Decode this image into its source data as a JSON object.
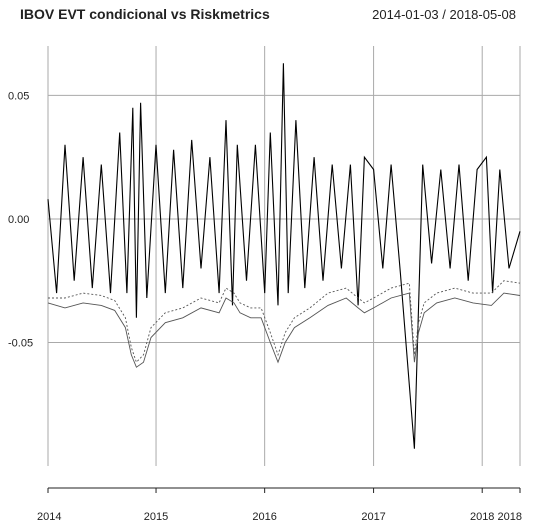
{
  "chart_data": {
    "type": "line",
    "title": "IBOV EVT condicional vs Riskmetrics",
    "date_range": "2014-01-03 / 2018-05-08",
    "xlim": [
      "2014-01-03",
      "2018-05-08"
    ],
    "ylim": [
      -0.1,
      0.07
    ],
    "x_ticks": [
      {
        "label": "2014",
        "date": "2014-01-03"
      },
      {
        "label": "2015",
        "date": "2015-01-01"
      },
      {
        "label": "2016",
        "date": "2016-01-01"
      },
      {
        "label": "2017",
        "date": "2017-01-01"
      },
      {
        "label": "2018",
        "date": "2018-01-01"
      },
      {
        "label": "2018",
        "date": "2018-05-08"
      }
    ],
    "y_ticks": [
      {
        "label": "0.05",
        "value": 0.05
      },
      {
        "label": "0.00",
        "value": 0.0
      },
      {
        "label": "-0.05",
        "value": -0.05
      }
    ],
    "grid": true,
    "colors": {
      "returns": "#000000",
      "evt": "#555555",
      "riskmetrics": "#555555",
      "grid": "#aaaaaa"
    },
    "series": [
      {
        "key": "returns",
        "style": "solid",
        "x": [
          "2014-01-03",
          "2014-02-01",
          "2014-03-01",
          "2014-04-01",
          "2014-05-01",
          "2014-06-01",
          "2014-07-01",
          "2014-08-01",
          "2014-09-01",
          "2014-09-25",
          "2014-10-15",
          "2014-10-27",
          "2014-11-10",
          "2014-12-01",
          "2015-01-01",
          "2015-02-01",
          "2015-03-01",
          "2015-04-01",
          "2015-05-01",
          "2015-06-01",
          "2015-07-01",
          "2015-08-01",
          "2015-08-24",
          "2015-09-15",
          "2015-10-01",
          "2015-11-01",
          "2015-12-01",
          "2016-01-01",
          "2016-01-20",
          "2016-02-15",
          "2016-03-04",
          "2016-03-20",
          "2016-04-15",
          "2016-05-15",
          "2016-06-15",
          "2016-07-15",
          "2016-08-15",
          "2016-09-15",
          "2016-10-15",
          "2016-11-10",
          "2016-12-01",
          "2017-01-01",
          "2017-02-01",
          "2017-03-01",
          "2017-04-01",
          "2017-05-18",
          "2017-06-15",
          "2017-07-15",
          "2017-08-15",
          "2017-09-15",
          "2017-10-15",
          "2017-11-15",
          "2017-12-15",
          "2018-01-15",
          "2018-02-05",
          "2018-03-01",
          "2018-04-01",
          "2018-05-08"
        ],
        "y": [
          0.008,
          -0.03,
          0.03,
          -0.025,
          0.025,
          -0.028,
          0.022,
          -0.03,
          0.035,
          -0.03,
          0.045,
          -0.04,
          0.047,
          -0.032,
          0.03,
          -0.03,
          0.028,
          -0.028,
          0.032,
          -0.02,
          0.025,
          -0.03,
          0.04,
          -0.035,
          0.03,
          -0.025,
          0.03,
          -0.03,
          0.035,
          -0.035,
          0.063,
          -0.03,
          0.04,
          -0.028,
          0.025,
          -0.025,
          0.022,
          -0.02,
          0.022,
          -0.035,
          0.025,
          0.02,
          -0.02,
          0.022,
          -0.022,
          -0.093,
          0.022,
          -0.018,
          0.02,
          -0.02,
          0.022,
          -0.025,
          0.02,
          0.025,
          -0.03,
          0.02,
          -0.02,
          -0.005
        ]
      },
      {
        "key": "evt",
        "style": "solid",
        "x": [
          "2014-01-03",
          "2014-03-01",
          "2014-05-01",
          "2014-07-01",
          "2014-08-15",
          "2014-09-20",
          "2014-10-10",
          "2014-10-27",
          "2014-11-20",
          "2014-12-15",
          "2015-02-01",
          "2015-04-01",
          "2015-06-01",
          "2015-08-01",
          "2015-08-24",
          "2015-09-20",
          "2015-10-10",
          "2015-11-15",
          "2015-12-20",
          "2016-01-20",
          "2016-02-15",
          "2016-03-10",
          "2016-04-10",
          "2016-06-01",
          "2016-08-01",
          "2016-10-01",
          "2016-11-10",
          "2016-12-01",
          "2017-01-01",
          "2017-03-01",
          "2017-05-01",
          "2017-05-18",
          "2017-06-01",
          "2017-06-20",
          "2017-08-01",
          "2017-10-01",
          "2017-12-01",
          "2018-02-01",
          "2018-03-15",
          "2018-05-08"
        ],
        "y": [
          -0.034,
          -0.036,
          -0.034,
          -0.035,
          -0.037,
          -0.044,
          -0.055,
          -0.06,
          -0.058,
          -0.048,
          -0.042,
          -0.04,
          -0.036,
          -0.038,
          -0.032,
          -0.034,
          -0.038,
          -0.04,
          -0.04,
          -0.05,
          -0.058,
          -0.05,
          -0.044,
          -0.04,
          -0.035,
          -0.032,
          -0.036,
          -0.038,
          -0.036,
          -0.032,
          -0.03,
          -0.058,
          -0.046,
          -0.038,
          -0.034,
          -0.032,
          -0.034,
          -0.035,
          -0.03,
          -0.031
        ]
      },
      {
        "key": "riskmetrics",
        "style": "dashed",
        "x": [
          "2014-01-03",
          "2014-03-01",
          "2014-05-01",
          "2014-07-01",
          "2014-08-15",
          "2014-09-20",
          "2014-10-10",
          "2014-10-27",
          "2014-11-20",
          "2014-12-15",
          "2015-02-01",
          "2015-04-01",
          "2015-06-01",
          "2015-08-01",
          "2015-08-24",
          "2015-09-20",
          "2015-10-10",
          "2015-11-15",
          "2015-12-20",
          "2016-01-20",
          "2016-02-15",
          "2016-03-10",
          "2016-04-10",
          "2016-06-01",
          "2016-08-01",
          "2016-10-01",
          "2016-11-10",
          "2016-12-01",
          "2017-01-01",
          "2017-03-01",
          "2017-05-01",
          "2017-05-18",
          "2017-06-01",
          "2017-06-20",
          "2017-08-01",
          "2017-10-01",
          "2017-12-01",
          "2018-02-01",
          "2018-03-15",
          "2018-05-08"
        ],
        "y": [
          -0.032,
          -0.032,
          -0.03,
          -0.031,
          -0.033,
          -0.04,
          -0.052,
          -0.058,
          -0.055,
          -0.044,
          -0.038,
          -0.036,
          -0.032,
          -0.034,
          -0.028,
          -0.03,
          -0.034,
          -0.036,
          -0.036,
          -0.046,
          -0.055,
          -0.046,
          -0.04,
          -0.036,
          -0.03,
          -0.028,
          -0.032,
          -0.034,
          -0.032,
          -0.028,
          -0.026,
          -0.055,
          -0.042,
          -0.034,
          -0.03,
          -0.028,
          -0.03,
          -0.03,
          -0.025,
          -0.026
        ]
      }
    ]
  }
}
